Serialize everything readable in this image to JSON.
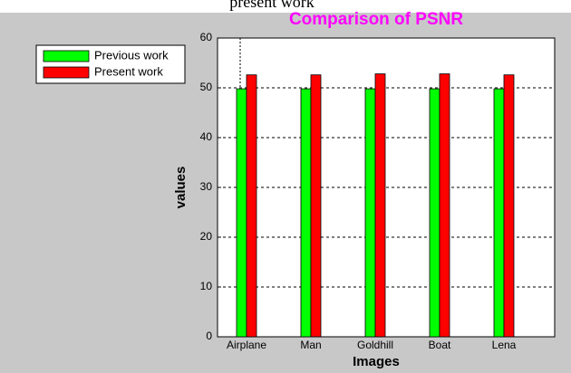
{
  "caption": "present work",
  "chart_data": {
    "type": "bar",
    "title": "Comparison of PSNR",
    "xlabel": "Images",
    "ylabel": "values",
    "categories": [
      "Airplane",
      "Man",
      "Goldhill",
      "Boat",
      "Lena"
    ],
    "series": [
      {
        "name": "Previous work",
        "color": "#00ff00",
        "values": [
          49.8,
          49.8,
          49.8,
          49.8,
          49.8
        ]
      },
      {
        "name": "Present work",
        "color": "#ff0000",
        "values": [
          52.6,
          52.6,
          52.8,
          52.8,
          52.6
        ]
      }
    ],
    "ylim": [
      0,
      60
    ],
    "yticks": [
      0,
      10,
      20,
      30,
      40,
      50,
      60
    ],
    "grid": true,
    "legend": "upper left"
  }
}
